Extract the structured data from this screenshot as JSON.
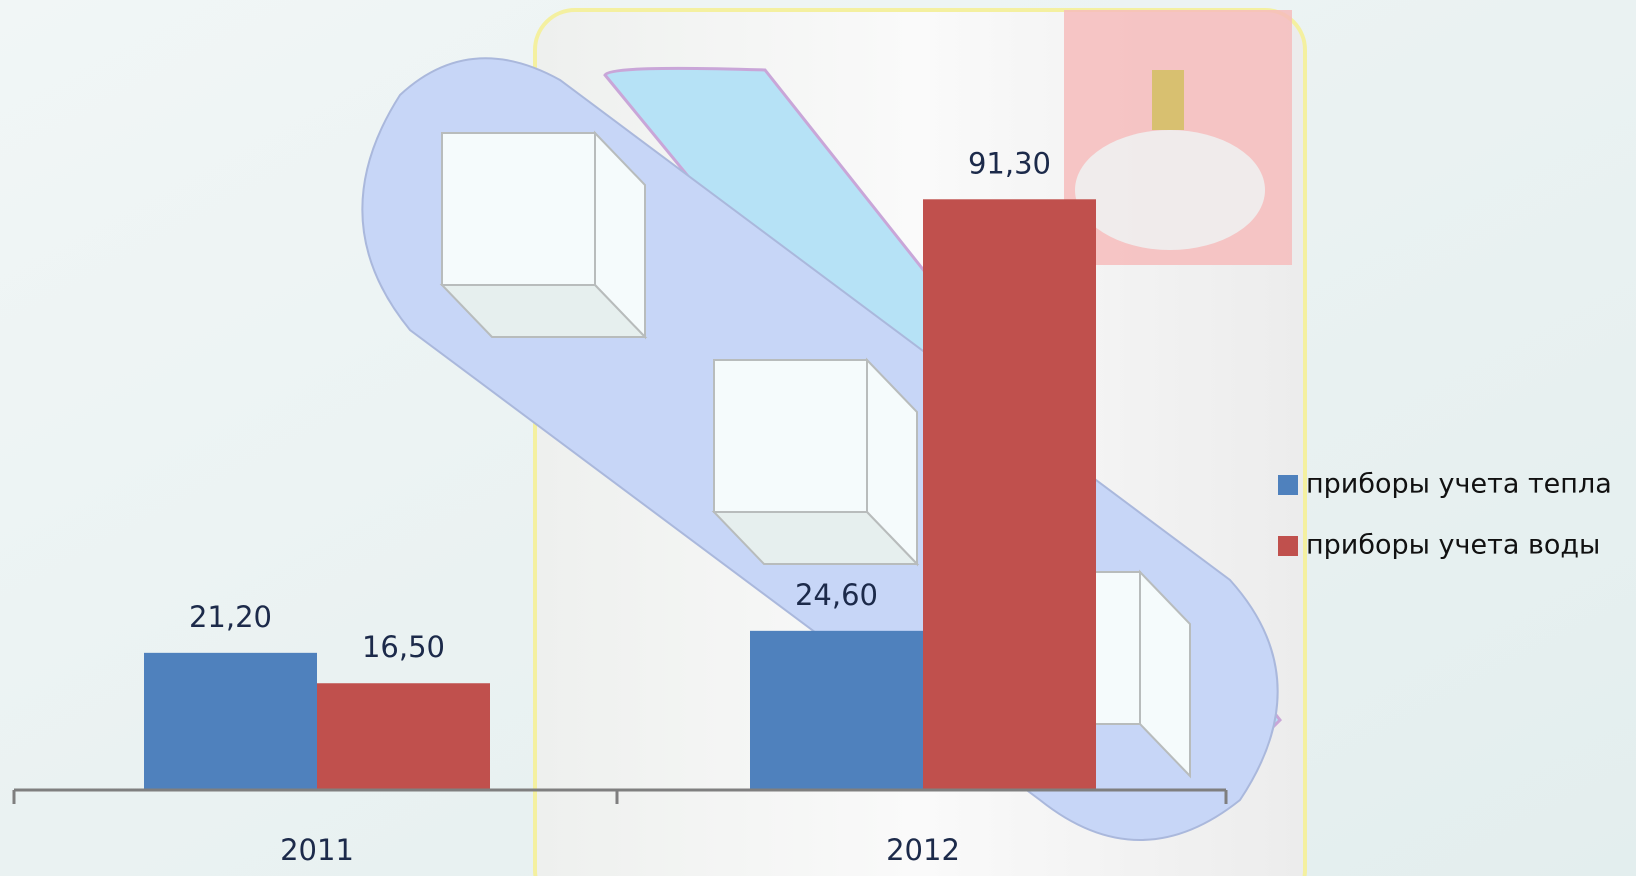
{
  "chart_data": {
    "type": "bar",
    "categories": [
      "2011",
      "2012"
    ],
    "series": [
      {
        "name": "приборы учета тепла",
        "color": "#4f81bd",
        "values": [
          21.2,
          24.6
        ],
        "value_labels": [
          "21,20",
          "24,60"
        ]
      },
      {
        "name": "приборы учета воды",
        "color": "#c0504d",
        "values": [
          16.5,
          91.3
        ],
        "value_labels": [
          "16,50",
          "91,30"
        ]
      }
    ],
    "ylim": [
      0,
      100
    ],
    "legend": "right"
  }
}
